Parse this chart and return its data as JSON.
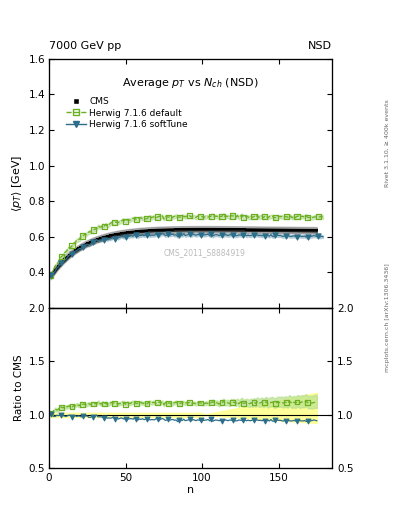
{
  "title_top_left": "7000 GeV pp",
  "title_top_right": "NSD",
  "main_title": "Average $p_T$ vs $N_{ch}$ (NSD)",
  "xlabel": "n",
  "ylabel_main": "$\\langle p_T \\rangle$ [GeV]",
  "ylabel_ratio": "Ratio to CMS",
  "watermark": "CMS_2011_S8884919",
  "right_label_top": "Rivet 3.1.10, ≥ 400k events",
  "right_label_bottom": "mcplots.cern.ch [arXiv:1306.3436]",
  "ylim_main": [
    0.2,
    1.6
  ],
  "ylim_ratio": [
    0.5,
    2.0
  ],
  "xlim": [
    0,
    185
  ],
  "yticks_main": [
    0.4,
    0.6,
    0.8,
    1.0,
    1.2,
    1.4,
    1.6
  ],
  "yticks_ratio": [
    0.5,
    1.0,
    1.5,
    2.0
  ],
  "xticks": [
    0,
    50,
    100,
    150
  ],
  "cms_color": "#000000",
  "herwig_default_color": "#6ab020",
  "herwig_softtune_color": "#2c6e8a",
  "cms_band_color": "#ffff99",
  "herwig_default_band_color": "#b8e090",
  "background_color": "#ffffff"
}
